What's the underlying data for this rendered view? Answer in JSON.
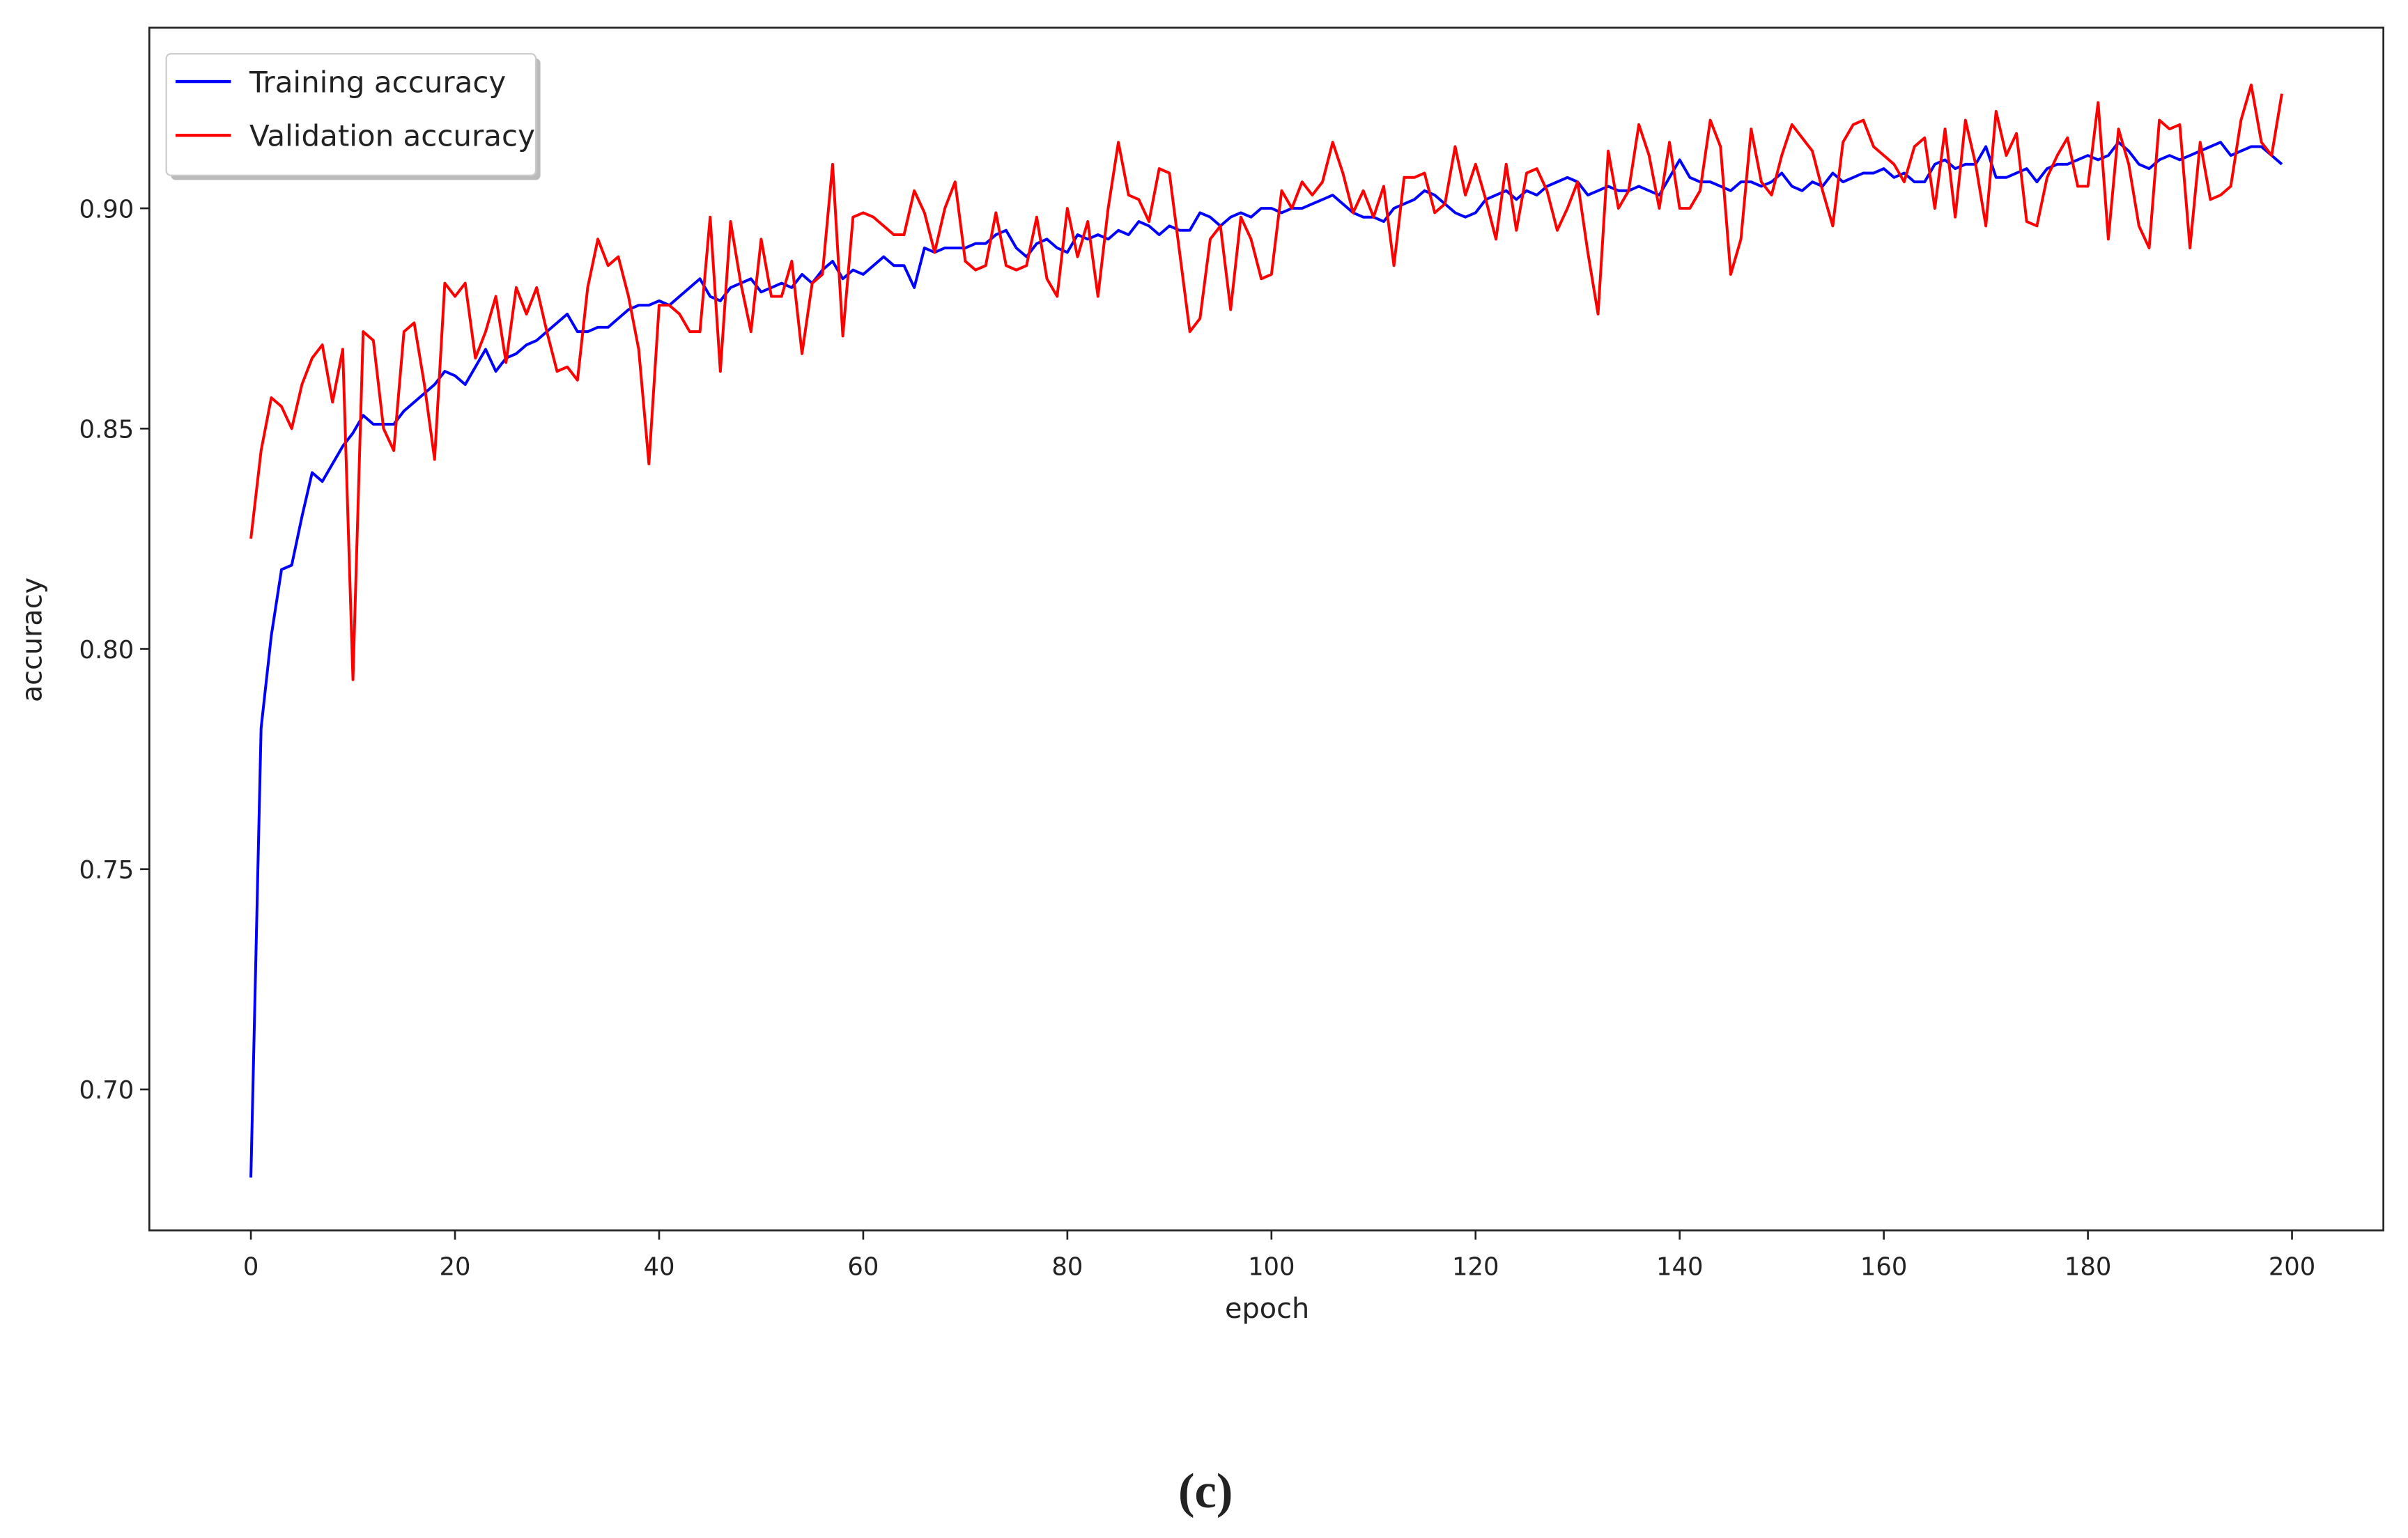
{
  "chart_data": {
    "type": "line",
    "xlabel": "epoch",
    "ylabel": "accuracy",
    "caption": "(c)",
    "x": [
      0,
      1,
      2,
      3,
      4,
      5,
      6,
      7,
      8,
      9,
      10,
      11,
      12,
      13,
      14,
      15,
      16,
      17,
      18,
      19,
      20,
      21,
      22,
      23,
      24,
      25,
      26,
      27,
      28,
      29,
      30,
      31,
      32,
      33,
      34,
      35,
      36,
      37,
      38,
      39,
      40,
      41,
      42,
      43,
      44,
      45,
      46,
      47,
      48,
      49,
      50,
      51,
      52,
      53,
      54,
      55,
      56,
      57,
      58,
      59,
      60,
      61,
      62,
      63,
      64,
      65,
      66,
      67,
      68,
      69,
      70,
      71,
      72,
      73,
      74,
      75,
      76,
      77,
      78,
      79,
      80,
      81,
      82,
      83,
      84,
      85,
      86,
      87,
      88,
      89,
      90,
      91,
      92,
      93,
      94,
      95,
      96,
      97,
      98,
      99,
      100,
      101,
      102,
      103,
      104,
      105,
      106,
      107,
      108,
      109,
      110,
      111,
      112,
      113,
      114,
      115,
      116,
      117,
      118,
      119,
      120,
      121,
      122,
      123,
      124,
      125,
      126,
      127,
      128,
      129,
      130,
      131,
      132,
      133,
      134,
      135,
      136,
      137,
      138,
      139,
      140,
      141,
      142,
      143,
      144,
      145,
      146,
      147,
      148,
      149,
      150,
      151,
      152,
      153,
      154,
      155,
      156,
      157,
      158,
      159,
      160,
      161,
      162,
      163,
      164,
      165,
      166,
      167,
      168,
      169,
      170,
      171,
      172,
      173,
      174,
      175,
      176,
      177,
      178,
      179,
      180,
      181,
      182,
      183,
      184,
      185,
      186,
      187,
      188,
      189,
      190,
      191,
      192,
      193,
      194,
      195,
      196,
      197,
      198,
      199
    ],
    "series": [
      {
        "name": "Training accuracy",
        "color": "#0000ff",
        "values": [
          0.68,
          0.782,
          0.803,
          0.818,
          0.819,
          0.83,
          0.84,
          0.838,
          0.842,
          0.846,
          0.849,
          0.853,
          0.851,
          0.851,
          0.851,
          0.854,
          0.856,
          0.858,
          0.86,
          0.863,
          0.862,
          0.86,
          0.864,
          0.868,
          0.863,
          0.866,
          0.867,
          0.869,
          0.87,
          0.872,
          0.874,
          0.876,
          0.872,
          0.872,
          0.873,
          0.873,
          0.875,
          0.877,
          0.878,
          0.878,
          0.879,
          0.878,
          0.88,
          0.882,
          0.884,
          0.88,
          0.879,
          0.882,
          0.883,
          0.884,
          0.881,
          0.882,
          0.883,
          0.882,
          0.885,
          0.883,
          0.886,
          0.888,
          0.884,
          0.886,
          0.885,
          0.887,
          0.889,
          0.887,
          0.887,
          0.882,
          0.891,
          0.89,
          0.891,
          0.891,
          0.891,
          0.892,
          0.892,
          0.894,
          0.895,
          0.891,
          0.889,
          0.892,
          0.893,
          0.891,
          0.89,
          0.894,
          0.893,
          0.894,
          0.893,
          0.895,
          0.894,
          0.897,
          0.896,
          0.894,
          0.896,
          0.895,
          0.895,
          0.899,
          0.898,
          0.896,
          0.898,
          0.899,
          0.898,
          0.9,
          0.9,
          0.899,
          0.9,
          0.9,
          0.901,
          0.902,
          0.903,
          0.901,
          0.899,
          0.898,
          0.898,
          0.897,
          0.9,
          0.901,
          0.902,
          0.904,
          0.903,
          0.901,
          0.899,
          0.898,
          0.899,
          0.902,
          0.903,
          0.904,
          0.902,
          0.904,
          0.903,
          0.905,
          0.906,
          0.907,
          0.906,
          0.903,
          0.904,
          0.905,
          0.904,
          0.904,
          0.905,
          0.904,
          0.903,
          0.907,
          0.911,
          0.907,
          0.906,
          0.906,
          0.905,
          0.904,
          0.906,
          0.906,
          0.905,
          0.906,
          0.908,
          0.905,
          0.904,
          0.906,
          0.905,
          0.908,
          0.906,
          0.907,
          0.908,
          0.908,
          0.909,
          0.907,
          0.908,
          0.906,
          0.906,
          0.91,
          0.911,
          0.909,
          0.91,
          0.91,
          0.914,
          0.907,
          0.907,
          0.908,
          0.909,
          0.906,
          0.909,
          0.91,
          0.91,
          0.911,
          0.912,
          0.911,
          0.912,
          0.915,
          0.913,
          0.91,
          0.909,
          0.911,
          0.912,
          0.911,
          0.912,
          0.913,
          0.914,
          0.915,
          0.912,
          0.913,
          0.914,
          0.914,
          0.912,
          0.91
        ]
      },
      {
        "name": "Validation accuracy",
        "color": "#ff0000",
        "values": [
          0.825,
          0.845,
          0.857,
          0.855,
          0.85,
          0.86,
          0.866,
          0.869,
          0.856,
          0.868,
          0.793,
          0.872,
          0.87,
          0.85,
          0.845,
          0.872,
          0.874,
          0.86,
          0.843,
          0.883,
          0.88,
          0.883,
          0.866,
          0.872,
          0.88,
          0.865,
          0.882,
          0.876,
          0.882,
          0.872,
          0.863,
          0.864,
          0.861,
          0.882,
          0.893,
          0.887,
          0.889,
          0.88,
          0.868,
          0.842,
          0.878,
          0.878,
          0.876,
          0.872,
          0.872,
          0.898,
          0.863,
          0.897,
          0.883,
          0.872,
          0.893,
          0.88,
          0.88,
          0.888,
          0.867,
          0.883,
          0.885,
          0.91,
          0.871,
          0.898,
          0.899,
          0.898,
          0.896,
          0.894,
          0.894,
          0.904,
          0.899,
          0.89,
          0.9,
          0.906,
          0.888,
          0.886,
          0.887,
          0.899,
          0.887,
          0.886,
          0.887,
          0.898,
          0.884,
          0.88,
          0.9,
          0.889,
          0.897,
          0.88,
          0.9,
          0.915,
          0.903,
          0.902,
          0.897,
          0.909,
          0.908,
          0.89,
          0.872,
          0.875,
          0.893,
          0.896,
          0.877,
          0.898,
          0.893,
          0.884,
          0.885,
          0.904,
          0.9,
          0.906,
          0.903,
          0.906,
          0.915,
          0.908,
          0.899,
          0.904,
          0.898,
          0.905,
          0.887,
          0.907,
          0.907,
          0.908,
          0.899,
          0.901,
          0.914,
          0.903,
          0.91,
          0.902,
          0.893,
          0.91,
          0.895,
          0.908,
          0.909,
          0.904,
          0.895,
          0.9,
          0.906,
          0.89,
          0.876,
          0.913,
          0.9,
          0.904,
          0.919,
          0.912,
          0.9,
          0.915,
          0.9,
          0.9,
          0.904,
          0.92,
          0.914,
          0.885,
          0.893,
          0.918,
          0.906,
          0.903,
          0.912,
          0.919,
          0.916,
          0.913,
          0.904,
          0.896,
          0.915,
          0.919,
          0.92,
          0.914,
          0.912,
          0.91,
          0.906,
          0.914,
          0.916,
          0.9,
          0.918,
          0.898,
          0.92,
          0.91,
          0.896,
          0.922,
          0.912,
          0.917,
          0.897,
          0.896,
          0.907,
          0.912,
          0.916,
          0.905,
          0.905,
          0.924,
          0.893,
          0.918,
          0.91,
          0.896,
          0.891,
          0.92,
          0.918,
          0.919,
          0.891,
          0.915,
          0.902,
          0.903,
          0.905,
          0.92,
          0.928,
          0.915,
          0.912,
          0.926
        ]
      }
    ],
    "xlim": [
      -9.95,
      208.95
    ],
    "ylim": [
      0.668,
      0.941
    ],
    "xticks": [
      0,
      20,
      40,
      60,
      80,
      100,
      120,
      140,
      160,
      180,
      200
    ],
    "yticks": [
      {
        "value": 0.7,
        "label": "0.70"
      },
      0.75,
      {
        "value": 0.8,
        "label": "0.80"
      },
      0.85,
      {
        "value": 0.9,
        "label": "0.90"
      }
    ],
    "grid": false,
    "legend": "upper left"
  }
}
